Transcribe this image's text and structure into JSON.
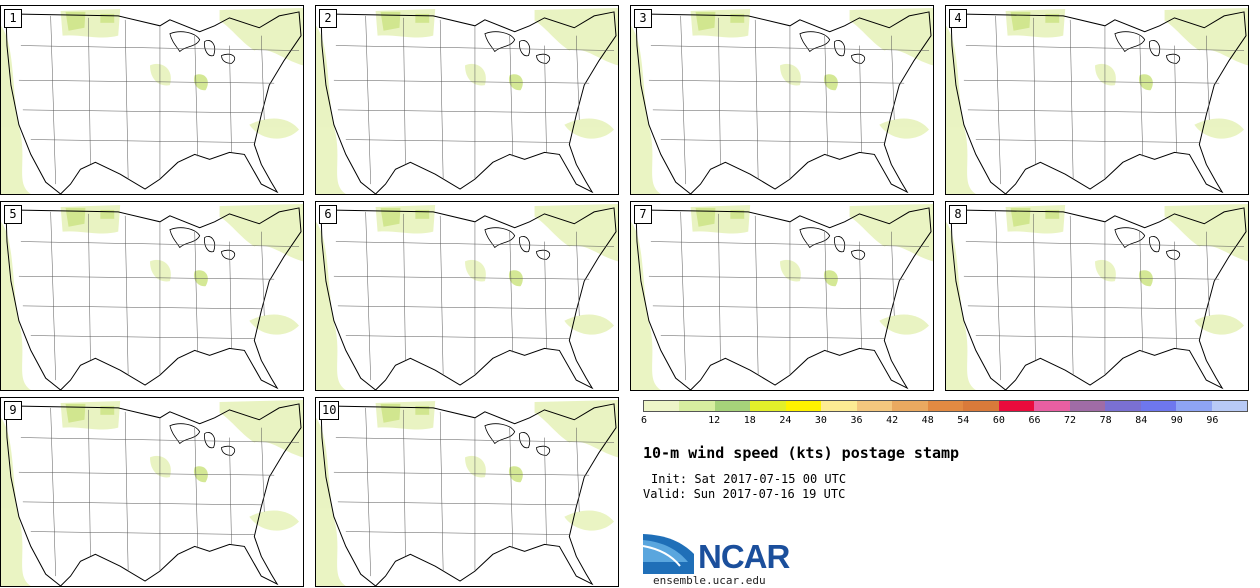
{
  "members": [
    "1",
    "2",
    "3",
    "4",
    "5",
    "6",
    "7",
    "8",
    "9",
    "10"
  ],
  "colorbar": {
    "ticks": [
      "6",
      "12",
      "18",
      "24",
      "30",
      "36",
      "42",
      "48",
      "54",
      "60",
      "66",
      "72",
      "78",
      "84",
      "90",
      "96"
    ],
    "colors": [
      "#eef5c8",
      "#d8eea0",
      "#a6d27a",
      "#e2ef2a",
      "#fff200",
      "#fdeb93",
      "#f4c77e",
      "#eaa960",
      "#e28a42",
      "#d97a3a",
      "#ea0b3c",
      "#e85fa2",
      "#a06ca6",
      "#7a70d2",
      "#6e77ee",
      "#8ea4f4",
      "#b8caf6"
    ]
  },
  "title": "10-m wind speed (kts) postage stamp",
  "init": "Init: Sat 2017-07-15 00 UTC",
  "valid": "Valid: Sun 2017-07-16 19 UTC",
  "logo": {
    "text": "NCAR",
    "url": "ensemble.ucar.edu"
  }
}
